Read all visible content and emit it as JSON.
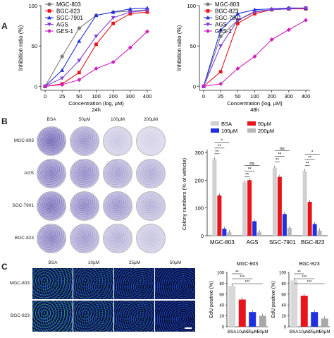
{
  "panels": {
    "a": "A",
    "b": "B",
    "c": "C"
  },
  "panelA": {
    "legend": [
      "MGC-803",
      "BGC-823",
      "SGC-7901",
      "AGS",
      "GES-1"
    ],
    "chart_data": [
      {
        "type": "line",
        "xlabel": "Concentration (log, μM)",
        "time_label": "24h",
        "ylabel": "Inhibition ratio (%)",
        "ylim": [
          -5,
          100
        ],
        "yticks": [
          0,
          50,
          100
        ],
        "categories": [
          "0",
          "25",
          "50",
          "100",
          "200",
          "300",
          "400"
        ],
        "series": [
          {
            "name": "MGC-803",
            "color": "#7a7a7a",
            "marker": "circle",
            "values": [
              0,
              37,
              72,
              88,
              92,
              93,
              95
            ]
          },
          {
            "name": "BGC-823",
            "color": "#e8141c",
            "marker": "square",
            "values": [
              0,
              3,
              17,
              52,
              78,
              90,
              92
            ]
          },
          {
            "name": "SGC-7901",
            "color": "#2030e0",
            "marker": "triangle",
            "values": [
              0,
              20,
              56,
              88,
              92,
              96,
              97
            ]
          },
          {
            "name": "AGS",
            "color": "#8040d8",
            "marker": "triangle-down",
            "values": [
              0,
              10,
              32,
              62,
              85,
              92,
              94
            ]
          },
          {
            "name": "GES-1",
            "color": "#d020c0",
            "marker": "diamond",
            "values": [
              0,
              2,
              8,
              22,
              30,
              48,
              68
            ]
          }
        ]
      },
      {
        "type": "line",
        "xlabel": "Concentration (log, μM)",
        "time_label": "48h",
        "ylabel": "Inhibition ratio (%)",
        "ylim": [
          -5,
          100
        ],
        "yticks": [
          0,
          50,
          100
        ],
        "categories": [
          "0",
          "25",
          "50",
          "100",
          "200",
          "300",
          "400"
        ],
        "series": [
          {
            "name": "MGC-803",
            "color": "#7a7a7a",
            "marker": "circle",
            "values": [
              0,
              62,
              82,
              93,
              95,
              97,
              97
            ]
          },
          {
            "name": "BGC-823",
            "color": "#e8141c",
            "marker": "square",
            "values": [
              0,
              18,
              78,
              90,
              95,
              96,
              96
            ]
          },
          {
            "name": "SGC-7901",
            "color": "#2030e0",
            "marker": "triangle",
            "values": [
              0,
              70,
              90,
              95,
              96,
              97,
              97
            ]
          },
          {
            "name": "AGS",
            "color": "#8040d8",
            "marker": "triangle-down",
            "values": [
              0,
              50,
              82,
              92,
              95,
              96,
              97
            ]
          },
          {
            "name": "GES-1",
            "color": "#d020c0",
            "marker": "diamond",
            "values": [
              0,
              3,
              22,
              37,
              58,
              70,
              82
            ]
          }
        ]
      }
    ]
  },
  "panelB": {
    "dish_columns": [
      "BSA",
      "50μM",
      "100μM",
      "200μM"
    ],
    "dish_rows": [
      "MGC-803",
      "AGS",
      "SGC-7901",
      "BGC-823"
    ],
    "chart_data": {
      "type": "bar",
      "ylabel": "Colony numbers (% of vehicle)",
      "ylim": [
        0,
        300
      ],
      "yticks": [
        0,
        100,
        200,
        300
      ],
      "categories": [
        "MGC-803",
        "AGS",
        "SGC-7901",
        "BGC-823"
      ],
      "series": [
        {
          "name": "BSA",
          "color": "#d0d0d0",
          "values": [
            275,
            192,
            245,
            233
          ]
        },
        {
          "name": "50μM",
          "color": "#e8141c",
          "values": [
            145,
            200,
            212,
            122
          ]
        },
        {
          "name": "100μM",
          "color": "#2030e0",
          "values": [
            25,
            52,
            78,
            42
          ]
        },
        {
          "name": "200μM",
          "color": "#b8b8b8",
          "values": [
            12,
            12,
            28,
            18
          ]
        }
      ],
      "significance": [
        [
          "**",
          "**",
          "*"
        ],
        [
          "**",
          "**",
          "ns"
        ],
        [
          "**",
          "**",
          "ns"
        ],
        [
          "**",
          "**",
          "*"
        ]
      ]
    }
  },
  "panelC": {
    "image_columns": [
      "BSA",
      "10μM",
      "25μM",
      "50μM"
    ],
    "image_rows": [
      "MGC-803",
      "BGC-823"
    ],
    "chart_data": [
      {
        "type": "bar",
        "title": "MGC-803",
        "ylabel": "EdU positive (%)",
        "ylim": [
          0,
          100
        ],
        "yticks": [
          0,
          20,
          40,
          60,
          80,
          100
        ],
        "categories": [
          "BSA",
          "10μM",
          "25μM",
          "50μM"
        ],
        "colors": [
          "#d8d8d8",
          "#e8141c",
          "#2030e0",
          "#a8a8a8"
        ],
        "values": [
          75,
          50,
          27,
          20
        ],
        "significance": [
          "**",
          "***",
          "***"
        ]
      },
      {
        "type": "bar",
        "title": "BGC-823",
        "ylabel": "EdU positive (%)",
        "ylim": [
          0,
          100
        ],
        "yticks": [
          0,
          20,
          40,
          60,
          80,
          100
        ],
        "categories": [
          "BSA",
          "10μM",
          "25μM",
          "50μM"
        ],
        "colors": [
          "#d8d8d8",
          "#e8141c",
          "#2030e0",
          "#a8a8a8"
        ],
        "values": [
          85,
          57,
          27,
          15
        ],
        "significance": [
          "**",
          "***",
          "***"
        ]
      }
    ]
  }
}
